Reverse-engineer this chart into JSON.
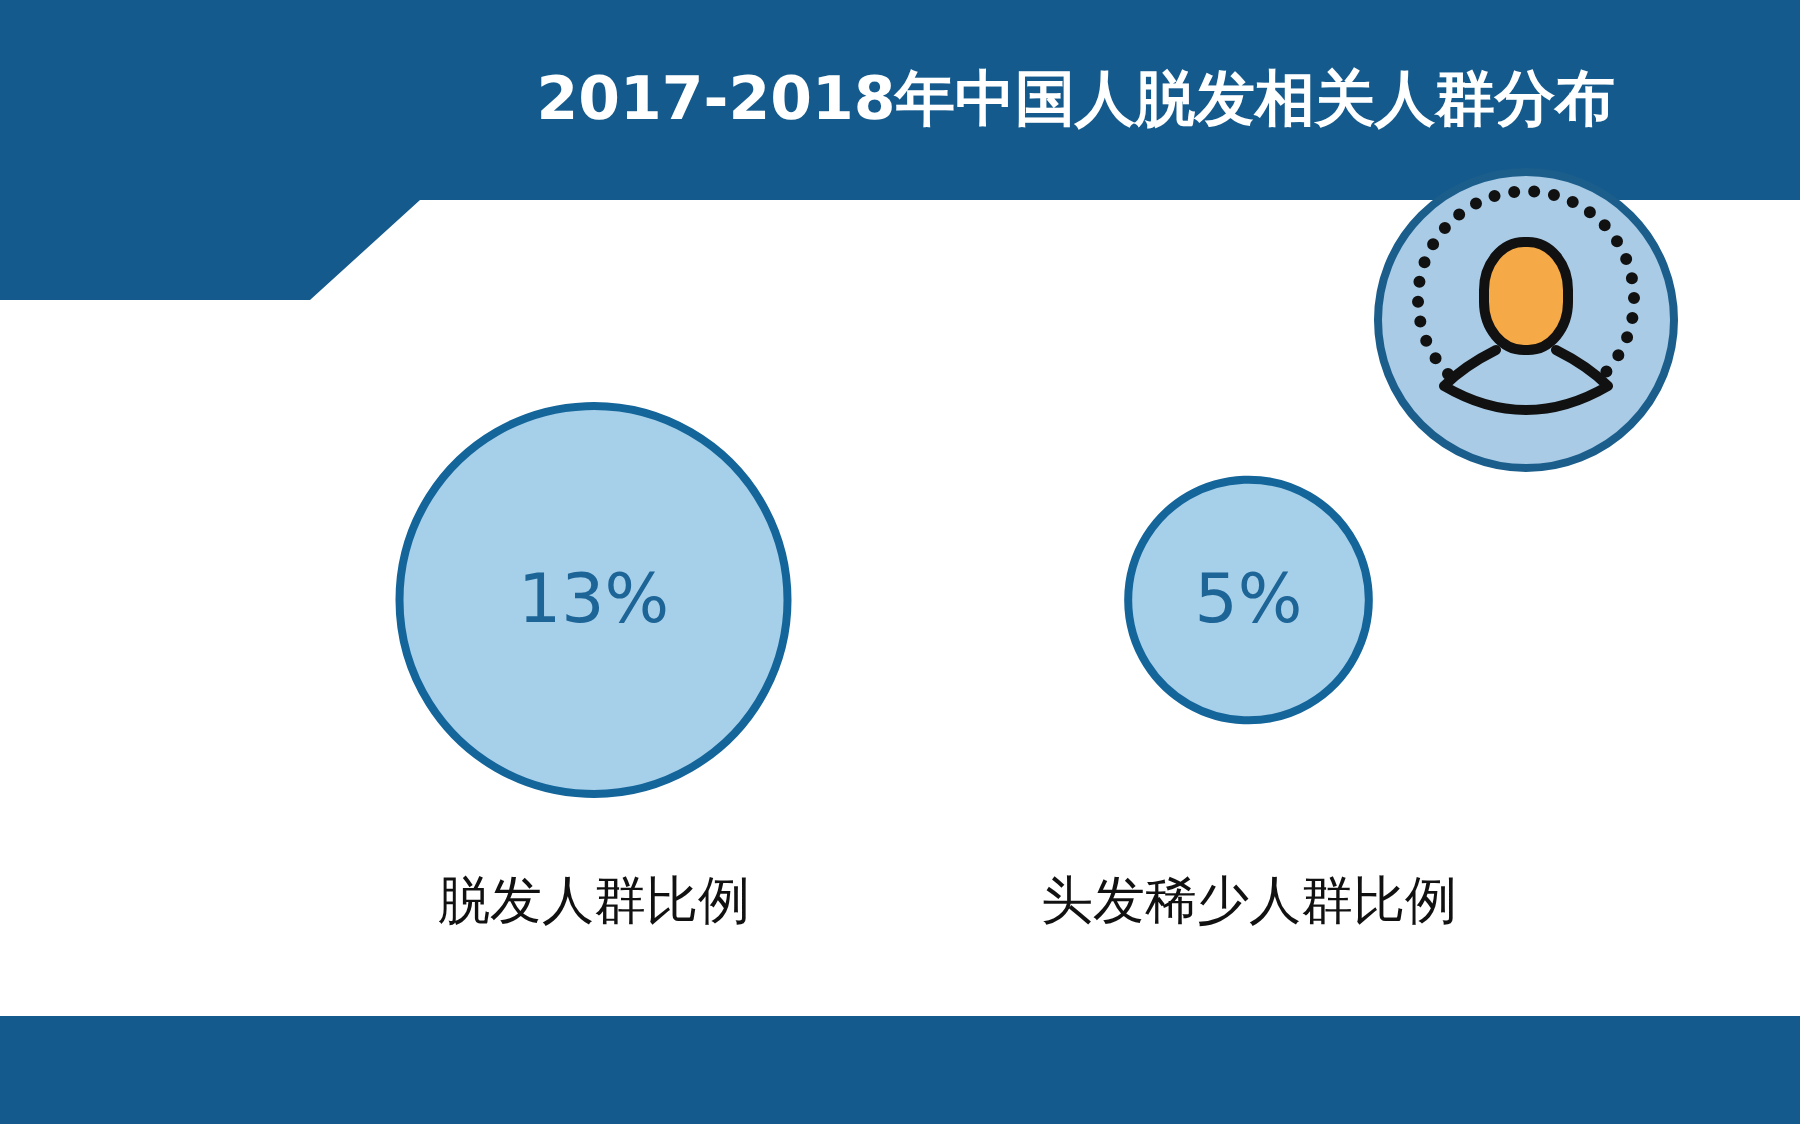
{
  "chart_data": {
    "type": "other",
    "title": "2017-2018年中国人脱发相关人群分布",
    "categories": [
      "脱发人群比例",
      "头发稀少人群比例"
    ],
    "values": [
      13,
      5
    ],
    "value_labels": [
      "13%",
      "5%"
    ],
    "color": "#a6cfea"
  }
}
